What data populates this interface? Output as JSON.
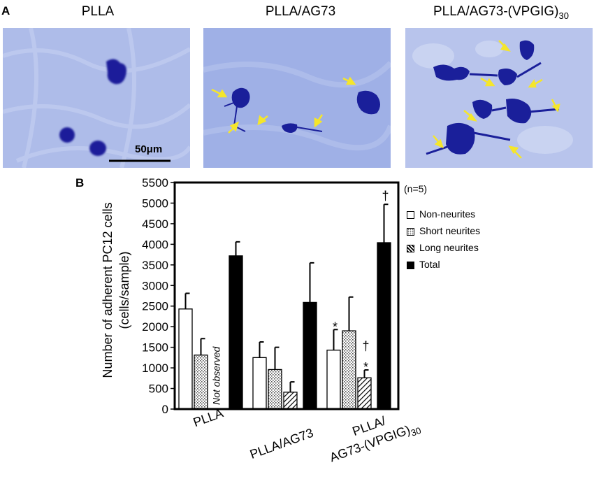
{
  "panel_a_label": "A",
  "panel_b_label": "B",
  "images": [
    {
      "title": "PLLA"
    },
    {
      "title": "PLLA/AG73"
    },
    {
      "title": "PLLA/AG73-(VPGIG)",
      "title_sub": "30"
    }
  ],
  "scale_bar_label": "50μm",
  "colors": {
    "micro_bg": "#a9b9e8",
    "cell": "#1a1f9a",
    "arrow": "#f5e62a"
  },
  "legend": {
    "n_label": "(n=5)",
    "items": [
      {
        "label": "Non-neurites",
        "pattern": "white"
      },
      {
        "label": "Short neurites",
        "pattern": "dots"
      },
      {
        "label": "Long neurites",
        "pattern": "hatch"
      },
      {
        "label": "Total",
        "pattern": "black"
      }
    ]
  },
  "chart_data": {
    "type": "bar",
    "ylabel_line1": "Number  of adherent  PC12 cells",
    "ylabel_line2": "(cells/sample)",
    "ylim": [
      0,
      5500
    ],
    "yticks": [
      0,
      500,
      1000,
      1500,
      2000,
      2500,
      3000,
      3500,
      4000,
      4500,
      5000,
      5500
    ],
    "categories": [
      "PLLA",
      "PLLA/AG73",
      "PLLA/ AG73-(VPGIG)30"
    ],
    "category_labels": [
      {
        "line1": "PLLA"
      },
      {
        "line1": "PLLA/AG73"
      },
      {
        "line1": "PLLA/",
        "line2": "AG73-(VPGIG)",
        "line2_sub": "30"
      }
    ],
    "series": [
      {
        "name": "Non-neurites",
        "values": [
          2430,
          1250,
          1430
        ],
        "errors": [
          380,
          380,
          500
        ]
      },
      {
        "name": "Short neurites",
        "values": [
          1310,
          960,
          1900
        ],
        "errors": [
          400,
          540,
          820
        ]
      },
      {
        "name": "Long neurites",
        "values": [
          null,
          410,
          760
        ],
        "errors": [
          null,
          250,
          190
        ]
      },
      {
        "name": "Total",
        "values": [
          3720,
          2590,
          4040
        ],
        "errors": [
          340,
          960,
          930
        ]
      }
    ],
    "annotations": [
      {
        "text": "Not observed",
        "category": 0,
        "series": 2
      },
      {
        "text": "*",
        "category": 2,
        "series": 0
      },
      {
        "text": "†",
        "category": 2,
        "series": 2
      },
      {
        "text": "*",
        "category": 2,
        "series": 2
      },
      {
        "text": "†",
        "category": 2,
        "series": 3
      }
    ]
  }
}
